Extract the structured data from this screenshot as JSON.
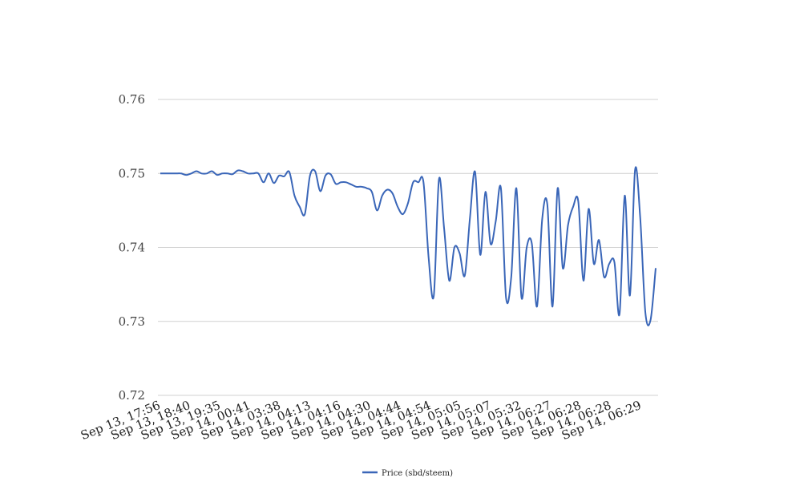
{
  "chart_data": {
    "type": "line",
    "title": "",
    "xlabel": "",
    "ylabel": "",
    "ylim": [
      0.72,
      0.76
    ],
    "y_ticks": [
      "0.72",
      "0.73",
      "0.74",
      "0.75",
      "0.76"
    ],
    "grid": "horizontal",
    "legend_position": "bottom",
    "x_tick_labels": [
      "Sep 13, 17:56",
      "Sep 13, 18:40",
      "Sep 13, 19:35",
      "Sep 14, 00:41",
      "Sep 14, 03:38",
      "Sep 14, 04:13",
      "Sep 14, 04:16",
      "Sep 14, 04:30",
      "Sep 14, 04:44",
      "Sep 14, 04:54",
      "Sep 14, 05:05",
      "Sep 14, 05:07",
      "Sep 14, 05:32",
      "Sep 14, 06:27",
      "Sep 14, 06:28",
      "Sep 14, 06:28",
      "Sep 14, 06:29"
    ],
    "series": [
      {
        "name": "Price (sbd/steem)",
        "color": "#3a66b8",
        "values": [
          0.75,
          0.75,
          0.75,
          0.75,
          0.75,
          0.7498,
          0.75,
          0.7503,
          0.75,
          0.75,
          0.7503,
          0.7498,
          0.75,
          0.75,
          0.7499,
          0.7504,
          0.7503,
          0.75,
          0.75,
          0.75,
          0.7488,
          0.75,
          0.7487,
          0.7497,
          0.7496,
          0.7502,
          0.747,
          0.7455,
          0.7445,
          0.7497,
          0.7503,
          0.7476,
          0.7497,
          0.7499,
          0.7486,
          0.7488,
          0.7488,
          0.7485,
          0.7482,
          0.7482,
          0.748,
          0.7475,
          0.745,
          0.747,
          0.7478,
          0.7473,
          0.7455,
          0.7445,
          0.746,
          0.7488,
          0.7488,
          0.7488,
          0.7385,
          0.7335,
          0.7492,
          0.7425,
          0.7355,
          0.74,
          0.7392,
          0.7362,
          0.744,
          0.7502,
          0.739,
          0.7475,
          0.7405,
          0.7435,
          0.748,
          0.7332,
          0.736,
          0.748,
          0.7332,
          0.74,
          0.7405,
          0.732,
          0.7438,
          0.7458,
          0.732,
          0.748,
          0.7372,
          0.743,
          0.7455,
          0.7462,
          0.7355,
          0.7452,
          0.7378,
          0.741,
          0.736,
          0.7378,
          0.738,
          0.731,
          0.747,
          0.7335,
          0.7505,
          0.744,
          0.7312,
          0.7302,
          0.7372
        ]
      }
    ]
  }
}
